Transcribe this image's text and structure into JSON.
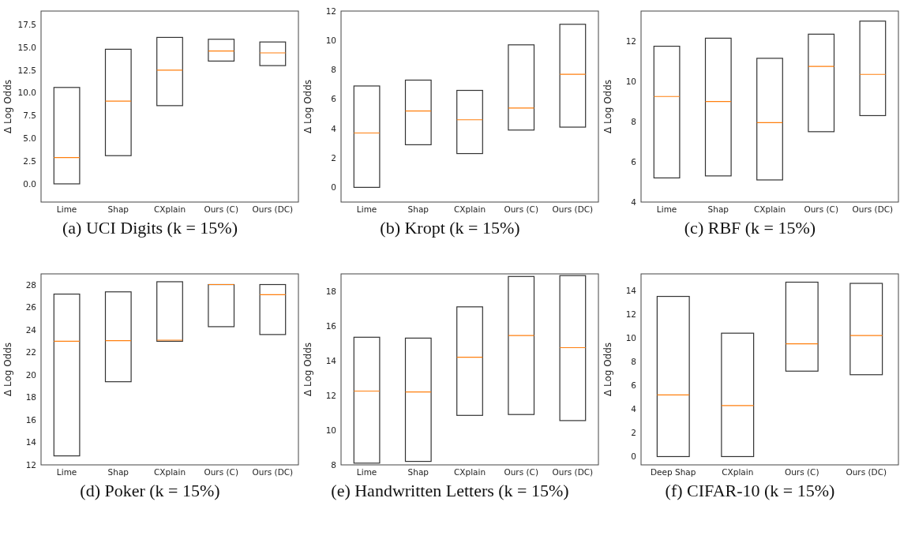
{
  "chart_data": [
    {
      "type": "box",
      "title": "(a) UCI Digits (k = 15%)",
      "ylabel": "Δ Log Odds",
      "categories": [
        "Lime",
        "Shap",
        "CXplain",
        "Ours (C)",
        "Ours (DC)"
      ],
      "boxes": [
        {
          "low": 0,
          "q1": 0,
          "median": 2.9,
          "q3": 10.6,
          "high": 10.6
        },
        {
          "low": 3.1,
          "q1": 3.1,
          "median": 9.1,
          "q3": 14.8,
          "high": 14.8
        },
        {
          "low": 8.6,
          "q1": 8.6,
          "median": 12.5,
          "q3": 16.1,
          "high": 16.1
        },
        {
          "low": 13.5,
          "q1": 13.5,
          "median": 14.6,
          "q3": 15.9,
          "high": 15.9
        },
        {
          "low": 13.0,
          "q1": 13.0,
          "median": 14.4,
          "q3": 15.6,
          "high": 15.6
        }
      ],
      "ylim": [
        -2,
        19
      ],
      "yticks": [
        {
          "value": 0,
          "label": "0.0"
        },
        {
          "value": 2.5,
          "label": "2.5"
        },
        {
          "value": 5,
          "label": "5.0"
        },
        {
          "value": 7.5,
          "label": "7.5"
        },
        {
          "value": 10,
          "label": "10.0"
        },
        {
          "value": 12.5,
          "label": "12.5"
        },
        {
          "value": 15,
          "label": "15.0"
        },
        {
          "value": 17.5,
          "label": "17.5"
        }
      ]
    },
    {
      "type": "box",
      "title": "(b) Kropt (k = 15%)",
      "ylabel": "Δ Log Odds",
      "categories": [
        "Lime",
        "Shap",
        "CXplain",
        "Ours (C)",
        "Ours (DC)"
      ],
      "boxes": [
        {
          "low": 0,
          "q1": 0,
          "median": 3.7,
          "q3": 6.9,
          "high": 6.9
        },
        {
          "low": 2.9,
          "q1": 2.9,
          "median": 5.2,
          "q3": 7.3,
          "high": 7.3
        },
        {
          "low": 2.3,
          "q1": 2.3,
          "median": 4.6,
          "q3": 6.6,
          "high": 6.6
        },
        {
          "low": 3.9,
          "q1": 3.9,
          "median": 5.4,
          "q3": 9.7,
          "high": 9.7
        },
        {
          "low": 4.1,
          "q1": 4.1,
          "median": 7.7,
          "q3": 11.1,
          "high": 11.1
        }
      ],
      "ylim": [
        -1,
        12
      ],
      "yticks": [
        0,
        2,
        4,
        6,
        8,
        10,
        12
      ]
    },
    {
      "type": "box",
      "title": "(c) RBF (k = 15%)",
      "ylabel": "Δ Log Odds",
      "categories": [
        "Lime",
        "Shap",
        "CXplain",
        "Ours (C)",
        "Ours (DC)"
      ],
      "boxes": [
        {
          "low": 5.2,
          "q1": 5.2,
          "median": 9.25,
          "q3": 11.75,
          "high": 11.75
        },
        {
          "low": 5.3,
          "q1": 5.3,
          "median": 9.0,
          "q3": 12.15,
          "high": 12.15
        },
        {
          "low": 5.1,
          "q1": 5.1,
          "median": 7.95,
          "q3": 11.15,
          "high": 11.15
        },
        {
          "low": 7.5,
          "q1": 7.5,
          "median": 10.75,
          "q3": 12.35,
          "high": 12.35
        },
        {
          "low": 8.3,
          "q1": 8.3,
          "median": 10.35,
          "q3": 13.0,
          "high": 13.0
        }
      ],
      "ylim": [
        4,
        13.5
      ],
      "yticks": [
        4,
        6,
        8,
        10,
        12
      ]
    },
    {
      "type": "box",
      "title": "(d) Poker (k = 15%)",
      "ylabel": "Δ Log Odds",
      "categories": [
        "Lime",
        "Shap",
        "CXplain",
        "Ours (C)",
        "Ours (DC)"
      ],
      "boxes": [
        {
          "low": 12.8,
          "q1": 12.8,
          "median": 23.0,
          "q3": 27.2,
          "high": 27.2
        },
        {
          "low": 19.4,
          "q1": 19.4,
          "median": 23.05,
          "q3": 27.4,
          "high": 27.4
        },
        {
          "low": 23.0,
          "q1": 23.0,
          "median": 23.1,
          "q3": 28.3,
          "high": 28.3
        },
        {
          "low": 24.3,
          "q1": 24.3,
          "median": 28.05,
          "q3": 28.05,
          "high": 28.05
        },
        {
          "low": 23.6,
          "q1": 23.6,
          "median": 27.15,
          "q3": 28.05,
          "high": 28.05
        }
      ],
      "ylim": [
        12,
        29
      ],
      "yticks": [
        12,
        14,
        16,
        18,
        20,
        22,
        24,
        26,
        28
      ]
    },
    {
      "type": "box",
      "title": "(e) Handwritten Letters (k = 15%)",
      "ylabel": "Δ Log Odds",
      "categories": [
        "Lime",
        "Shap",
        "CXplain",
        "Ours (C)",
        "Ours (DC)"
      ],
      "boxes": [
        {
          "low": 8.1,
          "q1": 8.1,
          "median": 12.25,
          "q3": 15.35,
          "high": 15.35
        },
        {
          "low": 8.2,
          "q1": 8.2,
          "median": 12.2,
          "q3": 15.3,
          "high": 15.3
        },
        {
          "low": 10.85,
          "q1": 10.85,
          "median": 14.2,
          "q3": 17.1,
          "high": 17.1
        },
        {
          "low": 10.9,
          "q1": 10.9,
          "median": 15.45,
          "q3": 18.85,
          "high": 18.85
        },
        {
          "low": 10.55,
          "q1": 10.55,
          "median": 14.75,
          "q3": 18.9,
          "high": 18.9
        }
      ],
      "ylim": [
        8,
        19
      ],
      "yticks": [
        8,
        10,
        12,
        14,
        16,
        18
      ]
    },
    {
      "type": "box",
      "title": "(f) CIFAR-10 (k = 15%)",
      "ylabel": "Δ Log Odds",
      "categories": [
        "Deep Shap",
        "CXplain",
        "Ours (C)",
        "Ours (DC)"
      ],
      "boxes": [
        {
          "low": 0,
          "q1": 0,
          "median": 5.2,
          "q3": 13.5,
          "high": 13.5
        },
        {
          "low": 0,
          "q1": 0,
          "median": 4.3,
          "q3": 10.4,
          "high": 10.4
        },
        {
          "low": 7.2,
          "q1": 7.2,
          "median": 9.5,
          "q3": 14.7,
          "high": 14.7
        },
        {
          "low": 6.9,
          "q1": 6.9,
          "median": 10.2,
          "q3": 14.6,
          "high": 14.6
        }
      ],
      "ylim": [
        -0.7,
        15.4
      ],
      "yticks": [
        0,
        2,
        4,
        6,
        8,
        10,
        12,
        14
      ]
    }
  ]
}
